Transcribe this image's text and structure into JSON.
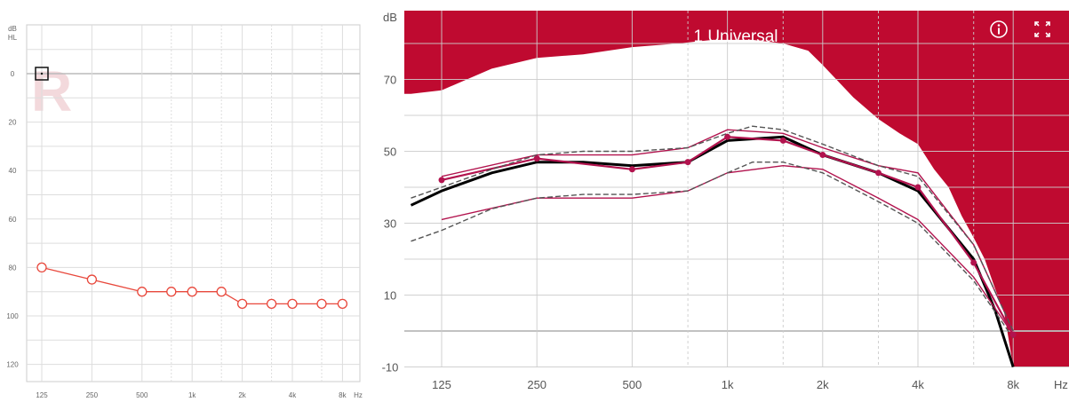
{
  "chart_data": [
    {
      "type": "line",
      "ear_letter": "R",
      "ylabel": [
        "dB",
        "HL"
      ],
      "xunit": "Hz",
      "x_ticks": [
        "125",
        "250",
        "500",
        "1k",
        "2k",
        "4k",
        "8k"
      ],
      "y_ticks": [
        "0",
        "20",
        "40",
        "60",
        "80",
        "100",
        "120"
      ],
      "ylim": [
        -10,
        130
      ],
      "xlim_hz": [
        100,
        10000
      ],
      "grid": true,
      "colors": {
        "threshold": "#e8483c",
        "ear_letter": "#f3d9dc",
        "grid": "#dddddd"
      },
      "series": [
        {
          "x": [
            125,
            250,
            500,
            750,
            1000,
            1500,
            2000,
            3000,
            4000,
            6000,
            8000
          ],
          "values": [
            80,
            85,
            90,
            90,
            90,
            90,
            95,
            95,
            95,
            95,
            95
          ]
        }
      ],
      "masked_marker": {
        "x": 125,
        "y": 0
      }
    },
    {
      "type": "area",
      "title": "1 Universal",
      "ylabel": "dB",
      "xunit": "Hz",
      "x_ticks": [
        "125",
        "250",
        "500",
        "1k",
        "2k",
        "4k",
        "8k"
      ],
      "y_ticks": [
        "70",
        "50",
        "30",
        "10",
        "-10"
      ],
      "ylim": [
        -10,
        90
      ],
      "xlim_hz": [
        100,
        10000
      ],
      "grid": true,
      "colors": {
        "mpo_area": "#bf0a30",
        "target": "#555555",
        "curve": "#b2134e",
        "average": "#000000",
        "grid": "#cccccc"
      },
      "icons": [
        "info-icon",
        "fullscreen-icon"
      ],
      "mpo_limit": {
        "x": [
          100,
          125,
          180,
          250,
          350,
          500,
          700,
          900,
          1000,
          1200,
          1500,
          1800,
          2000,
          2500,
          3000,
          3500,
          4000,
          4500,
          5000,
          5500,
          6000,
          6500,
          7000,
          7500,
          8000,
          10000
        ],
        "values": [
          66,
          67,
          73,
          76,
          77,
          79,
          80,
          81,
          81,
          81,
          80,
          78,
          74,
          65,
          59,
          55,
          52,
          45,
          40,
          32,
          26,
          20,
          12,
          5,
          -10,
          -10
        ]
      },
      "series": [
        {
          "x": [
            100,
            125,
            180,
            250,
            350,
            500,
            750,
            1000,
            1500,
            2000,
            3000,
            4000,
            6000,
            7000,
            8000
          ],
          "values": [
            35,
            39,
            44,
            47,
            47,
            46,
            47,
            53,
            54,
            49,
            44,
            39,
            20,
            6,
            -10
          ]
        },
        {
          "x": [
            125,
            250,
            500,
            750,
            1000,
            1500,
            2000,
            3000,
            4000,
            6000,
            8000
          ],
          "values": [
            42,
            48,
            45,
            47,
            54,
            53,
            49,
            44,
            40,
            19,
            -1
          ]
        },
        {
          "x": [
            125,
            250,
            500,
            750,
            1000,
            1500,
            2000,
            3000,
            4000,
            6000,
            8000
          ],
          "values": [
            43,
            49,
            49,
            51,
            56,
            55,
            51,
            46,
            44,
            24,
            0
          ]
        },
        {
          "x": [
            125,
            250,
            500,
            750,
            1000,
            1500,
            2000,
            3000,
            4000,
            6000,
            8000
          ],
          "values": [
            31,
            37,
            37,
            39,
            44,
            46,
            45,
            37,
            31,
            15,
            -1
          ]
        },
        {
          "x": [
            100,
            125,
            180,
            250,
            350,
            500,
            750,
            1000,
            1200,
            1500,
            2000,
            3000,
            4000,
            6000,
            8000
          ],
          "values": [
            37,
            40,
            45,
            49,
            50,
            50,
            51,
            55,
            57,
            56,
            52,
            46,
            43,
            24,
            0
          ]
        },
        {
          "x": [
            100,
            125,
            180,
            250,
            350,
            500,
            750,
            1000,
            1200,
            1500,
            2000,
            3000,
            4000,
            6000,
            8000
          ],
          "values": [
            25,
            28,
            34,
            37,
            38,
            38,
            39,
            44,
            47,
            47,
            44,
            36,
            30,
            14,
            -2
          ]
        }
      ],
      "series_styles": [
        "average",
        "curve",
        "curve",
        "curve",
        "target",
        "target"
      ]
    }
  ]
}
